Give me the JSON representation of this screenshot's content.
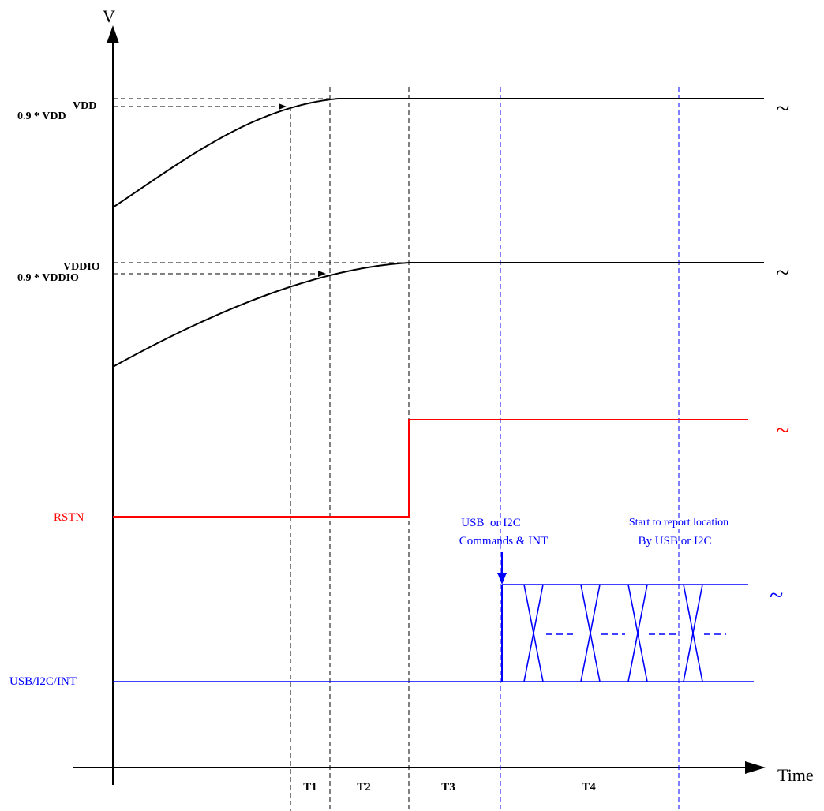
{
  "axes": {
    "y_label": "V",
    "x_label": "Time"
  },
  "signals": {
    "vdd": {
      "label": "VDD",
      "threshold_label": "0.9 * VDD"
    },
    "vddio": {
      "label": "VDDIO",
      "threshold_label": "0.9 * VDDIO"
    },
    "rstn": {
      "label": "RSTN",
      "color": "#ff0000"
    },
    "bus": {
      "label": "USB/I2C/INT",
      "color": "#0000ff"
    }
  },
  "annotations": {
    "commands": {
      "line1": "USB  or I2C",
      "line2": "Commands & INT"
    },
    "report": {
      "line1": "Start to report location",
      "line2": "By USB or I2C"
    }
  },
  "intervals": [
    "T1",
    "T2",
    "T3",
    "T4"
  ],
  "continuation_glyph": "~"
}
